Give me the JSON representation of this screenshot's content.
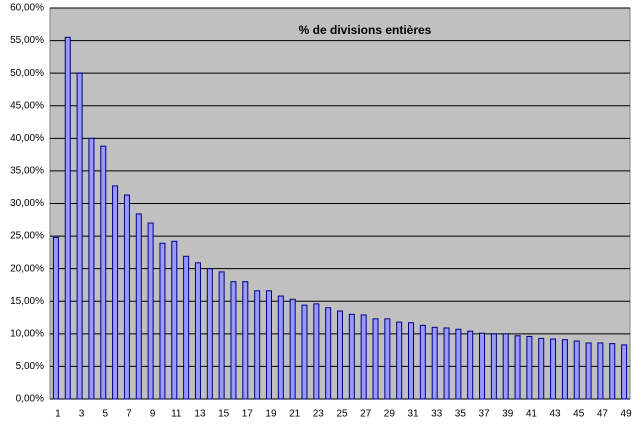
{
  "chart_data": {
    "type": "bar",
    "title": "% de divisions entières",
    "categories": [
      1,
      null,
      3,
      null,
      5,
      null,
      7,
      null,
      9,
      null,
      11,
      null,
      13,
      null,
      15,
      null,
      17,
      null,
      19,
      null,
      21,
      null,
      23,
      null,
      25,
      null,
      27,
      null,
      29,
      null,
      31,
      null,
      33,
      null,
      35,
      null,
      37,
      null,
      39,
      null,
      41,
      null,
      43,
      null,
      45,
      null,
      47,
      null,
      49
    ],
    "values": [
      24.8,
      55.5,
      50,
      40,
      38.8,
      32.7,
      31.3,
      28.4,
      27,
      23.9,
      24.2,
      21.9,
      20.9,
      20,
      19.5,
      18,
      18,
      16.6,
      16.6,
      15.8,
      15.3,
      14.4,
      14.6,
      14,
      13.5,
      13,
      12.9,
      12.3,
      12.3,
      11.8,
      11.7,
      11.3,
      11,
      10.9,
      10.7,
      10.4,
      10.1,
      10,
      10,
      9.7,
      9.6,
      9.3,
      9.2,
      9.1,
      8.9,
      8.6,
      8.6,
      8.5,
      8.3
    ],
    "color": "#9999ff",
    "ylim": [
      0,
      60
    ],
    "yticks": [
      {
        "value": 0,
        "label": "0,00%"
      },
      {
        "value": 5,
        "label": "5,00%"
      },
      {
        "value": 10,
        "label": "10,00%"
      },
      {
        "value": 15,
        "label": "15,00%"
      },
      {
        "value": 20,
        "label": "20,00%"
      },
      {
        "value": 25,
        "label": "25,00%"
      },
      {
        "value": 30,
        "label": "30,00%"
      },
      {
        "value": 35,
        "label": "35,00%"
      },
      {
        "value": 40,
        "label": "40,00%"
      },
      {
        "value": 45,
        "label": "45,00%"
      },
      {
        "value": 50,
        "label": "50,00%"
      },
      {
        "value": 55,
        "label": "55,00%"
      },
      {
        "value": 60,
        "label": "60,00%"
      }
    ],
    "grid": true
  }
}
